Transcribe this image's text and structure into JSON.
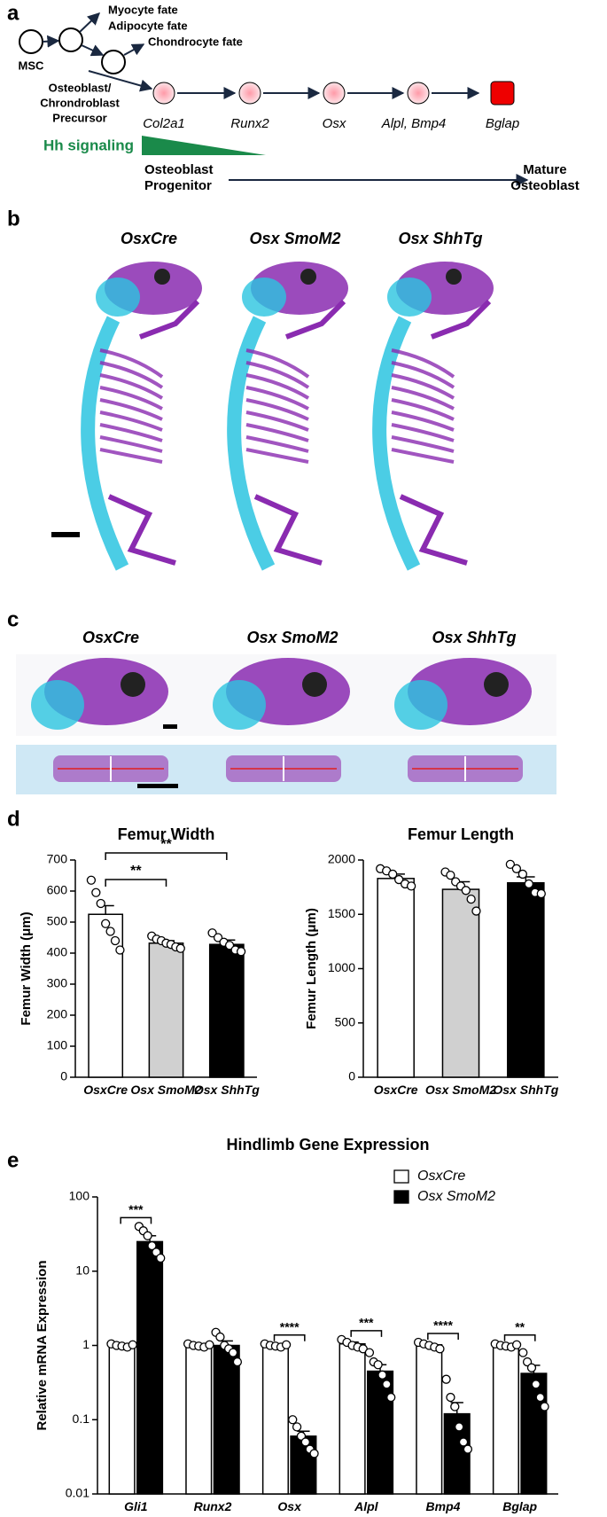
{
  "panel_labels": [
    "a",
    "b",
    "c",
    "d",
    "e"
  ],
  "diagram": {
    "msc": "MSC",
    "fates": [
      "Myocyte fate",
      "Adipocyte fate"
    ],
    "chondrocyte": "Chondrocyte fate",
    "precursor": [
      "Osteoblast/",
      "Chrondroblast",
      "Precursor"
    ],
    "markers": [
      "Col2a1",
      "Runx2",
      "Osx",
      "Alpl, Bmp4",
      "Bglap"
    ],
    "signaling": "Hh signaling",
    "progenitor": [
      "Osteoblast",
      "Progenitor"
    ],
    "mature": [
      "Mature",
      "Osteoblast"
    ]
  },
  "skeletons": {
    "genotypes": [
      "OsxCre",
      "Osx SmoM2",
      "Osx ShhTg"
    ]
  },
  "skulls": {
    "genotypes": [
      "OsxCre",
      "Osx SmoM2",
      "Osx ShhTg"
    ]
  },
  "chart_data": [
    {
      "type": "bar",
      "title": "Femur Width",
      "y_label": "Femur Width (μm)",
      "categories": [
        "OsxCre",
        "Osx SmoM2",
        "Osx ShhTg"
      ],
      "values": [
        525,
        432,
        428
      ],
      "errors": [
        28,
        8,
        14
      ],
      "points": [
        [
          635,
          595,
          560,
          495,
          470,
          440,
          410
        ],
        [
          455,
          445,
          440,
          432,
          428,
          420,
          415
        ],
        [
          465,
          450,
          435,
          425,
          410,
          405
        ]
      ],
      "colors": [
        "#ffffff",
        "#d0d0d0",
        "#000000"
      ],
      "ylim": [
        0,
        700
      ],
      "yticks": [
        0,
        100,
        200,
        300,
        400,
        500,
        600,
        700
      ],
      "significance": [
        {
          "pair": [
            0,
            1
          ],
          "label": "**"
        },
        {
          "pair": [
            0,
            2
          ],
          "label": "**"
        }
      ]
    },
    {
      "type": "bar",
      "title": "Femur Length",
      "y_label": "Femur Length (μm)",
      "categories": [
        "OsxCre",
        "Osx SmoM2",
        "Osx ShhTg"
      ],
      "values": [
        1830,
        1730,
        1790
      ],
      "errors": [
        40,
        70,
        55
      ],
      "points": [
        [
          1920,
          1900,
          1870,
          1820,
          1780,
          1760
        ],
        [
          1890,
          1860,
          1800,
          1760,
          1720,
          1640,
          1530
        ],
        [
          1960,
          1920,
          1870,
          1780,
          1700,
          1690
        ]
      ],
      "colors": [
        "#ffffff",
        "#d0d0d0",
        "#000000"
      ],
      "ylim": [
        0,
        2000
      ],
      "yticks": [
        0,
        500,
        1000,
        1500,
        2000
      ]
    },
    {
      "type": "bar",
      "title": "Hindlimb Gene Expression",
      "y_label": "Relative mRNA Expression",
      "categories": [
        "Gli1",
        "Runx2",
        "Osx",
        "Alpl",
        "Bmp4",
        "Bglap"
      ],
      "log_scale": true,
      "ylim": [
        0.01,
        100
      ],
      "yticks": [
        0.01,
        0.1,
        1,
        10,
        100
      ],
      "legend": "upper right",
      "series": [
        {
          "name": "OsxCre",
          "color": "#ffffff",
          "values": [
            1,
            1,
            1,
            1.05,
            1.02,
            1
          ],
          "errors": [
            0.03,
            0.03,
            0.03,
            0.06,
            0.04,
            0.03
          ],
          "points": [
            [
              1.05,
              1.0,
              0.98,
              0.95,
              1.02
            ],
            [
              1.05,
              1.0,
              0.98,
              0.95,
              1.02
            ],
            [
              1.05,
              1.0,
              0.98,
              0.95,
              1.02
            ],
            [
              1.2,
              1.1,
              1.0,
              0.95,
              0.9
            ],
            [
              1.1,
              1.05,
              1.0,
              0.95,
              0.9
            ],
            [
              1.05,
              1.0,
              0.98,
              0.95,
              1.02
            ]
          ]
        },
        {
          "name": "Osx SmoM2",
          "color": "#000000",
          "values": [
            25,
            1.0,
            0.06,
            0.45,
            0.12,
            0.42
          ],
          "errors": [
            5,
            0.15,
            0.01,
            0.1,
            0.05,
            0.12
          ],
          "points": [
            [
              40,
              35,
              30,
              22,
              18,
              15
            ],
            [
              1.5,
              1.3,
              1.0,
              0.9,
              0.8,
              0.6
            ],
            [
              0.1,
              0.08,
              0.06,
              0.05,
              0.04,
              0.035
            ],
            [
              0.8,
              0.6,
              0.55,
              0.4,
              0.3,
              0.2
            ],
            [
              0.35,
              0.2,
              0.15,
              0.08,
              0.05,
              0.04
            ],
            [
              0.8,
              0.6,
              0.5,
              0.3,
              0.2,
              0.15
            ]
          ]
        }
      ],
      "significance": [
        "***",
        null,
        "****",
        "***",
        "****",
        "**"
      ]
    }
  ]
}
